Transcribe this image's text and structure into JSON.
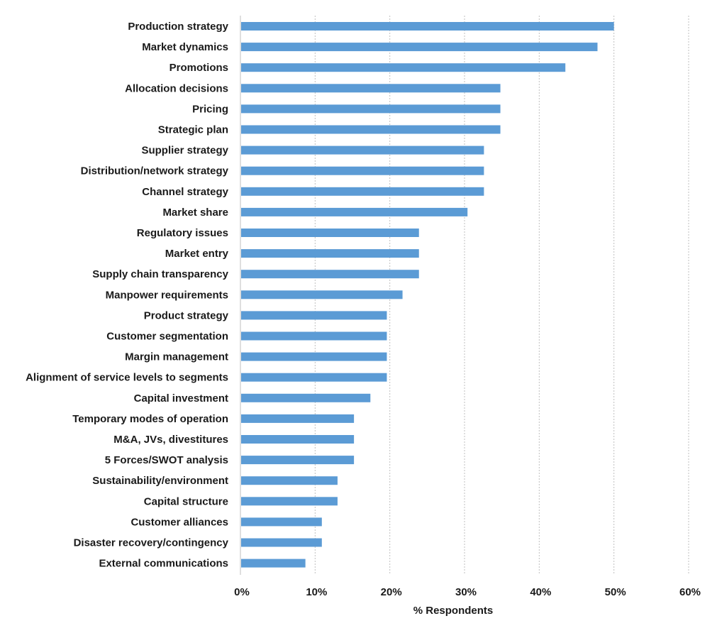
{
  "chart_data": {
    "type": "bar",
    "orientation": "horizontal",
    "categories": [
      "Production strategy",
      "Market dynamics",
      "Promotions",
      "Allocation decisions",
      "Pricing",
      "Strategic plan",
      "Supplier strategy",
      "Distribution/network strategy",
      "Channel strategy",
      "Market share",
      "Regulatory issues",
      "Market entry",
      "Supply chain transparency",
      "Manpower requirements",
      "Product strategy",
      "Customer segmentation",
      "Margin management",
      "Alignment of service levels to segments",
      "Capital investment",
      "Temporary modes of operation",
      "M&A, JVs, divestitures",
      "5 Forces/SWOT analysis",
      "Sustainability/environment",
      "Capital structure",
      "Customer alliances",
      "Disaster recovery/contingency",
      "External communications"
    ],
    "values": [
      50,
      47.8,
      43.5,
      34.8,
      34.8,
      34.8,
      32.6,
      32.6,
      32.6,
      30.4,
      23.9,
      23.9,
      23.9,
      21.7,
      19.6,
      19.6,
      19.6,
      19.6,
      17.4,
      15.2,
      15.2,
      15.2,
      13,
      13,
      10.9,
      10.9,
      8.7
    ],
    "xlabel": "% Respondents",
    "ylabel": "",
    "xlim": [
      0,
      60
    ],
    "xticks": [
      0,
      10,
      20,
      30,
      40,
      50,
      60
    ],
    "xtick_labels": [
      "0%",
      "10%",
      "20%",
      "30%",
      "40%",
      "50%",
      "60%"
    ],
    "grid": "vertical dashed",
    "bar_color": "#5b9bd5"
  }
}
